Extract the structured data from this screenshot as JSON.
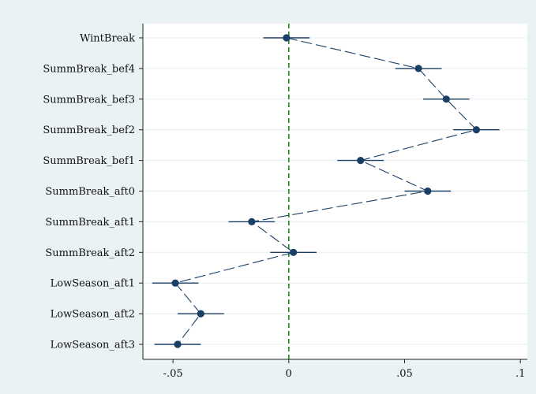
{
  "chart_data": {
    "type": "scatter",
    "title": "",
    "xlabel": "",
    "ylabel": "",
    "xlim": [
      -0.063,
      0.103
    ],
    "x_ticks": [
      -0.05,
      0,
      0.05,
      0.1
    ],
    "x_tick_labels": [
      "-.05",
      "0",
      ".05",
      ".1"
    ],
    "reference_line": {
      "x": 0,
      "color": "#1a8a1a",
      "style": "dashed"
    },
    "connect_points": true,
    "categories": [
      "WintBreak",
      "SummBreak_bef4",
      "SummBreak_bef3",
      "SummBreak_bef2",
      "SummBreak_bef1",
      "SummBreak_aft0",
      "SummBreak_aft1",
      "SummBreak_aft2",
      "LowSeason_aft1",
      "LowSeason_aft2",
      "LowSeason_aft3"
    ],
    "series": [
      {
        "values": [
          -0.001,
          0.056,
          0.068,
          0.081,
          0.031,
          0.06,
          -0.016,
          0.002,
          -0.049,
          -0.038,
          -0.048
        ],
        "ci_low": [
          -0.011,
          0.046,
          0.058,
          0.071,
          0.021,
          0.05,
          -0.026,
          -0.008,
          -0.059,
          -0.048,
          -0.058
        ],
        "ci_high": [
          0.009,
          0.066,
          0.078,
          0.091,
          0.041,
          0.07,
          -0.006,
          0.012,
          -0.039,
          -0.028,
          -0.038
        ]
      }
    ],
    "grid": true,
    "colors": {
      "marker": "#1a3f66",
      "line": "#1a3f66",
      "background_outer": "#eaf2f3",
      "plot_background": "#ffffff",
      "grid": "#e8eef0",
      "axis": "#222222"
    }
  }
}
